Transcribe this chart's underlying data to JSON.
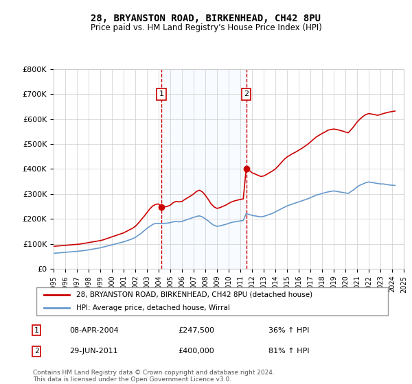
{
  "title": "28, BRYANSTON ROAD, BIRKENHEAD, CH42 8PU",
  "subtitle": "Price paid vs. HM Land Registry's House Price Index (HPI)",
  "legend_line1": "28, BRYANSTON ROAD, BIRKENHEAD, CH42 8PU (detached house)",
  "legend_line2": "HPI: Average price, detached house, Wirral",
  "transaction1_label": "1",
  "transaction1_date": "08-APR-2004",
  "transaction1_price": "£247,500",
  "transaction1_hpi": "36% ↑ HPI",
  "transaction2_label": "2",
  "transaction2_date": "29-JUN-2011",
  "transaction2_price": "£400,000",
  "transaction2_hpi": "81% ↑ HPI",
  "footer": "Contains HM Land Registry data © Crown copyright and database right 2024.\nThis data is licensed under the Open Government Licence v3.0.",
  "house_color": "#cc0000",
  "hpi_color": "#6699cc",
  "vline_color": "#cc0000",
  "shade_color": "#ddeeff",
  "ylim": [
    0,
    800000
  ],
  "yticks": [
    0,
    100000,
    200000,
    300000,
    400000,
    500000,
    600000,
    700000,
    800000
  ],
  "ytick_labels": [
    "£0",
    "£100K",
    "£200K",
    "£300K",
    "£400K",
    "£500K",
    "£600K",
    "£700K",
    "£800K"
  ],
  "house_data": {
    "years": [
      1995.0,
      1995.25,
      1995.5,
      1995.75,
      1996.0,
      1996.25,
      1996.5,
      1996.75,
      1997.0,
      1997.25,
      1997.5,
      1997.75,
      1998.0,
      1998.25,
      1998.5,
      1998.75,
      1999.0,
      1999.25,
      1999.5,
      1999.75,
      2000.0,
      2000.25,
      2000.5,
      2000.75,
      2001.0,
      2001.25,
      2001.5,
      2001.75,
      2002.0,
      2002.25,
      2002.5,
      2002.75,
      2003.0,
      2003.25,
      2003.5,
      2003.75,
      2004.0,
      2004.25,
      2004.5,
      2004.75,
      2005.0,
      2005.25,
      2005.5,
      2005.75,
      2006.0,
      2006.25,
      2006.5,
      2006.75,
      2007.0,
      2007.25,
      2007.5,
      2007.75,
      2008.0,
      2008.25,
      2008.5,
      2008.75,
      2009.0,
      2009.25,
      2009.5,
      2009.75,
      2010.0,
      2010.25,
      2010.5,
      2010.75,
      2011.0,
      2011.25,
      2011.5,
      2011.75,
      2012.0,
      2012.25,
      2012.5,
      2012.75,
      2013.0,
      2013.25,
      2013.5,
      2013.75,
      2014.0,
      2014.25,
      2014.5,
      2014.75,
      2015.0,
      2015.25,
      2015.5,
      2015.75,
      2016.0,
      2016.25,
      2016.5,
      2016.75,
      2017.0,
      2017.25,
      2017.5,
      2017.75,
      2018.0,
      2018.25,
      2018.5,
      2018.75,
      2019.0,
      2019.25,
      2019.5,
      2019.75,
      2020.0,
      2020.25,
      2020.5,
      2020.75,
      2021.0,
      2021.25,
      2021.5,
      2021.75,
      2022.0,
      2022.25,
      2022.5,
      2022.75,
      2023.0,
      2023.25,
      2023.5,
      2023.75,
      2024.0,
      2024.25
    ],
    "values": [
      90000,
      91000,
      92000,
      93000,
      94000,
      95000,
      96000,
      97000,
      98000,
      99000,
      101000,
      103000,
      105000,
      107000,
      109000,
      111000,
      113000,
      116000,
      120000,
      124000,
      128000,
      132000,
      136000,
      140000,
      144000,
      150000,
      156000,
      162000,
      170000,
      182000,
      196000,
      210000,
      225000,
      240000,
      252000,
      258000,
      260000,
      247500,
      248000,
      250000,
      255000,
      265000,
      270000,
      268000,
      270000,
      278000,
      285000,
      292000,
      300000,
      310000,
      315000,
      308000,
      295000,
      278000,
      260000,
      248000,
      242000,
      245000,
      250000,
      255000,
      262000,
      268000,
      272000,
      275000,
      278000,
      280000,
      400000,
      395000,
      385000,
      380000,
      375000,
      370000,
      372000,
      378000,
      385000,
      392000,
      400000,
      412000,
      425000,
      438000,
      448000,
      455000,
      462000,
      468000,
      475000,
      482000,
      490000,
      498000,
      508000,
      518000,
      528000,
      535000,
      542000,
      548000,
      555000,
      558000,
      560000,
      558000,
      555000,
      552000,
      548000,
      545000,
      558000,
      572000,
      588000,
      600000,
      610000,
      618000,
      622000,
      620000,
      618000,
      615000,
      618000,
      622000,
      625000,
      628000,
      630000,
      632000
    ]
  },
  "hpi_data": {
    "years": [
      1995.0,
      1995.25,
      1995.5,
      1995.75,
      1996.0,
      1996.25,
      1996.5,
      1996.75,
      1997.0,
      1997.25,
      1997.5,
      1997.75,
      1998.0,
      1998.25,
      1998.5,
      1998.75,
      1999.0,
      1999.25,
      1999.5,
      1999.75,
      2000.0,
      2000.25,
      2000.5,
      2000.75,
      2001.0,
      2001.25,
      2001.5,
      2001.75,
      2002.0,
      2002.25,
      2002.5,
      2002.75,
      2003.0,
      2003.25,
      2003.5,
      2003.75,
      2004.0,
      2004.25,
      2004.5,
      2004.75,
      2005.0,
      2005.25,
      2005.5,
      2005.75,
      2006.0,
      2006.25,
      2006.5,
      2006.75,
      2007.0,
      2007.25,
      2007.5,
      2007.75,
      2008.0,
      2008.25,
      2008.5,
      2008.75,
      2009.0,
      2009.25,
      2009.5,
      2009.75,
      2010.0,
      2010.25,
      2010.5,
      2010.75,
      2011.0,
      2011.25,
      2011.5,
      2011.75,
      2012.0,
      2012.25,
      2012.5,
      2012.75,
      2013.0,
      2013.25,
      2013.5,
      2013.75,
      2014.0,
      2014.25,
      2014.5,
      2014.75,
      2015.0,
      2015.25,
      2015.5,
      2015.75,
      2016.0,
      2016.25,
      2016.5,
      2016.75,
      2017.0,
      2017.25,
      2017.5,
      2017.75,
      2018.0,
      2018.25,
      2018.5,
      2018.75,
      2019.0,
      2019.25,
      2019.5,
      2019.75,
      2020.0,
      2020.25,
      2020.5,
      2020.75,
      2021.0,
      2021.25,
      2021.5,
      2021.75,
      2022.0,
      2022.25,
      2022.5,
      2022.75,
      2023.0,
      2023.25,
      2023.5,
      2023.75,
      2024.0,
      2024.25
    ],
    "values": [
      62000,
      63000,
      64000,
      65000,
      66000,
      67000,
      68000,
      69000,
      70000,
      71000,
      72500,
      74000,
      76000,
      78000,
      80000,
      82000,
      84000,
      87000,
      90000,
      93000,
      96000,
      99000,
      102000,
      105000,
      108000,
      112000,
      116000,
      120000,
      126000,
      134000,
      142000,
      152000,
      162000,
      170000,
      178000,
      182000,
      182000,
      181500,
      182000,
      183000,
      185000,
      188000,
      190000,
      188000,
      190000,
      194000,
      198000,
      202000,
      206000,
      210000,
      212000,
      208000,
      200000,
      192000,
      182000,
      174000,
      170000,
      172000,
      175000,
      178000,
      182000,
      186000,
      188000,
      190000,
      192000,
      194000,
      221000,
      218000,
      214000,
      212000,
      210000,
      208000,
      210000,
      214000,
      218000,
      222000,
      228000,
      234000,
      240000,
      246000,
      252000,
      256000,
      260000,
      264000,
      268000,
      272000,
      276000,
      280000,
      285000,
      290000,
      295000,
      298000,
      302000,
      305000,
      308000,
      310000,
      312000,
      310000,
      308000,
      306000,
      304000,
      302000,
      310000,
      318000,
      328000,
      335000,
      340000,
      345000,
      348000,
      346000,
      344000,
      342000,
      340000,
      340000,
      338000,
      336000,
      335000,
      334000
    ]
  },
  "transaction1_x": 2004.25,
  "transaction1_y": 247500,
  "transaction2_x": 2011.5,
  "transaction2_y": 400000,
  "xmin": 1995.0,
  "xmax": 2024.5,
  "xticks": [
    1995,
    1996,
    1997,
    1998,
    1999,
    2000,
    2001,
    2002,
    2003,
    2004,
    2005,
    2006,
    2007,
    2008,
    2009,
    2010,
    2011,
    2012,
    2013,
    2014,
    2015,
    2016,
    2017,
    2018,
    2019,
    2020,
    2021,
    2022,
    2023,
    2024,
    2025
  ]
}
